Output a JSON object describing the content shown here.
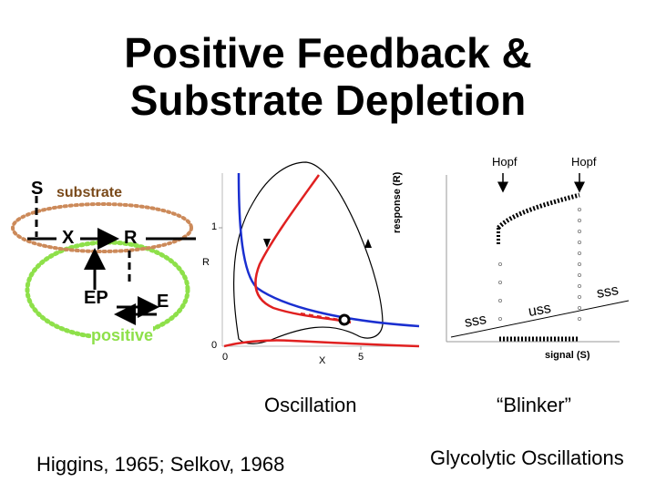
{
  "title": {
    "line1": "Positive Feedback &",
    "line2": "Substrate Depletion"
  },
  "diagram": {
    "nodes": {
      "s": "S",
      "substrate": "substrate",
      "x": "X",
      "r": "R",
      "ep": "EP",
      "e": "E",
      "positive": "positive"
    },
    "colors": {
      "loop": "#8ee04a",
      "substrate_loop": "#cc8a5a"
    }
  },
  "phase_plot": {
    "ylabel": "R",
    "xlabel": "X",
    "y_ticks": [
      "1",
      "0"
    ],
    "x_ticks": [
      "0",
      "5"
    ],
    "colors": {
      "nullcline_red": "#e02020",
      "nullcline_blue": "#1a2fd0",
      "trajectory": "#000000"
    },
    "caption": "Oscillation"
  },
  "bifurcation_plot": {
    "ylabel": "response (R)",
    "xlabel": "signal (S)",
    "annotations": {
      "hopf_left": "Hopf",
      "hopf_right": "Hopf",
      "sss_left": "sss",
      "uss": "uss",
      "sss_right": "sss"
    },
    "caption": "“Blinker”"
  },
  "footer": {
    "left": "Higgins, 1965; Selkov, 1968",
    "right": "Glycolytic Oscillations"
  }
}
